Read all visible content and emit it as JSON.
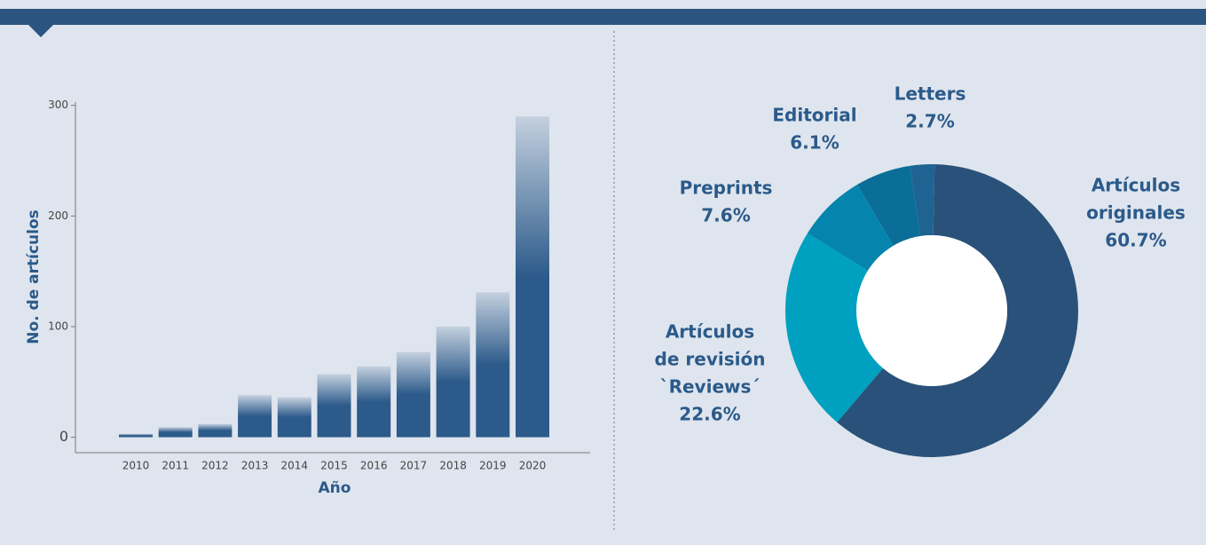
{
  "chart_data": [
    {
      "type": "bar",
      "xlabel": "Año",
      "ylabel": "No. de artículos",
      "categories": [
        "2010",
        "2011",
        "2012",
        "2013",
        "2014",
        "2015",
        "2016",
        "2017",
        "2018",
        "2019",
        "2020"
      ],
      "values": [
        3,
        9,
        12,
        38,
        36,
        57,
        64,
        77,
        100,
        131,
        290
      ],
      "color": "#2c5a8a",
      "ylim": [
        -14,
        303
      ],
      "yticks": [
        0,
        100,
        200,
        300
      ]
    },
    {
      "type": "donut",
      "categories": [
        [
          "Artículos",
          "originales"
        ],
        [
          "Artículos",
          "de revisión",
          "`Reviews´"
        ],
        [
          "Preprints"
        ],
        [
          "Editorial"
        ],
        [
          "Letters"
        ]
      ],
      "values": [
        60.7,
        22.6,
        7.6,
        6.1,
        2.7
      ],
      "value_labels": [
        "60.7%",
        "22.6%",
        "7.6%",
        "6.1%",
        "2.7%"
      ],
      "colors": [
        "#2a5179",
        "#00a0c0",
        "#0585ad",
        "#0b6e98",
        "#1f6392"
      ]
    }
  ]
}
